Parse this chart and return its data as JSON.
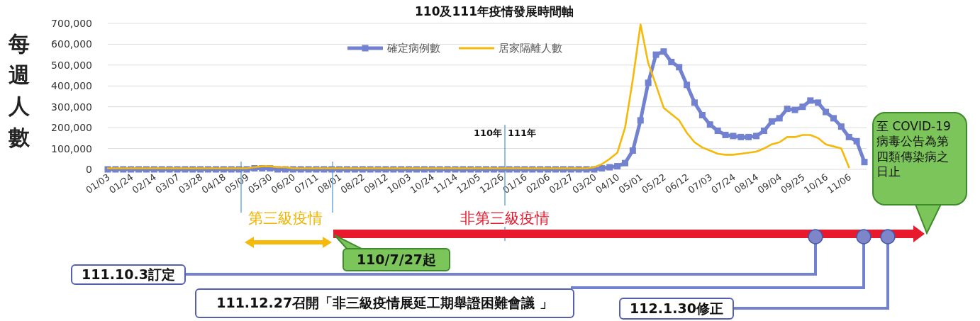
{
  "chart_data": {
    "type": "line",
    "title": "110及111年疫情發展時間軸",
    "ylabel": "每週人數",
    "categories": [
      "01/03",
      null,
      null,
      "01/24",
      null,
      null,
      "02/14",
      null,
      null,
      "03/07",
      null,
      null,
      "03/28",
      null,
      null,
      "04/18",
      null,
      null,
      "05/09",
      null,
      null,
      "05/30",
      null,
      null,
      "06/20",
      null,
      null,
      "07/11",
      null,
      null,
      "08/01",
      null,
      null,
      "08/22",
      null,
      null,
      "09/12",
      null,
      null,
      "10/03",
      null,
      null,
      "10/24",
      null,
      null,
      "11/14",
      null,
      null,
      "12/05",
      null,
      null,
      "12/26",
      null,
      null,
      "01/16",
      null,
      null,
      "02/06",
      null,
      null,
      "02/27",
      null,
      null,
      "03/20",
      null,
      null,
      "04/10",
      null,
      null,
      "05/01",
      null,
      null,
      "05/22",
      null,
      null,
      "06/12",
      null,
      null,
      "07/03",
      null,
      null,
      "07/24",
      null,
      null,
      "08/14",
      null,
      null,
      "09/04",
      null,
      null,
      "09/25",
      null,
      null,
      "10/16",
      null,
      null,
      "11/06",
      null,
      null
    ],
    "series": [
      {
        "name": "確定病例數",
        "color": "#7282d0",
        "marker": "square",
        "values": [
          0,
          0,
          0,
          0,
          0,
          0,
          0,
          0,
          0,
          0,
          0,
          0,
          0,
          0,
          0,
          0,
          0,
          0,
          0,
          5000,
          5000,
          5000,
          0,
          0,
          0,
          0,
          0,
          0,
          0,
          0,
          0,
          0,
          0,
          0,
          0,
          0,
          0,
          0,
          0,
          0,
          0,
          0,
          0,
          0,
          0,
          0,
          0,
          0,
          0,
          0,
          0,
          0,
          0,
          0,
          0,
          0,
          0,
          0,
          0,
          0,
          0,
          0,
          0,
          0,
          5000,
          10000,
          15000,
          30000,
          90000,
          235000,
          415000,
          550000,
          565000,
          515000,
          490000,
          405000,
          320000,
          260000,
          215000,
          185000,
          165000,
          160000,
          155000,
          155000,
          160000,
          185000,
          230000,
          245000,
          290000,
          285000,
          300000,
          330000,
          320000,
          275000,
          245000,
          205000,
          155000,
          135000,
          35000
        ]
      },
      {
        "name": "居家隔離人數",
        "color": "#f5b90a",
        "values": [
          5000,
          5000,
          5000,
          5000,
          5000,
          5000,
          5000,
          5000,
          5000,
          5000,
          5000,
          5000,
          5000,
          5000,
          5000,
          5000,
          5000,
          5000,
          5000,
          10000,
          15000,
          15000,
          10000,
          10000,
          5000,
          5000,
          5000,
          5000,
          5000,
          5000,
          5000,
          5000,
          5000,
          5000,
          5000,
          5000,
          5000,
          5000,
          5000,
          5000,
          5000,
          5000,
          5000,
          5000,
          5000,
          5000,
          5000,
          5000,
          5000,
          5000,
          5000,
          5000,
          5000,
          5000,
          5000,
          5000,
          5000,
          5000,
          5000,
          5000,
          5000,
          5000,
          5000,
          10000,
          25000,
          50000,
          80000,
          200000,
          430000,
          695000,
          510000,
          405000,
          295000,
          265000,
          235000,
          175000,
          130000,
          105000,
          90000,
          75000,
          70000,
          70000,
          75000,
          80000,
          85000,
          100000,
          120000,
          130000,
          155000,
          155000,
          165000,
          165000,
          150000,
          120000,
          110000,
          100000,
          10000,
          null,
          null
        ]
      }
    ],
    "ylim": [
      0,
      700000
    ],
    "yticks": [
      0,
      {
        "value": 100000,
        "label": "100,000"
      },
      {
        "value": 200000,
        "label": "200,000"
      },
      {
        "value": 300000,
        "label": "300,000"
      },
      {
        "value": 400000,
        "label": "400,000"
      },
      {
        "value": 500000,
        "label": "500,000"
      },
      {
        "value": 600000,
        "label": "600,000"
      },
      {
        "value": 700000,
        "label": "700,000"
      }
    ],
    "grid": "y",
    "legend": "top",
    "annotations": [
      "第三級疫情",
      "非第三級疫情",
      "110/7/27起",
      "111.10.3訂定",
      "111.12.27召開「非三級疫情展延工期舉證困難會議 」",
      "112.1.30修正",
      "至 COVID-19病毒公告為第四類傳染病之日止",
      "110年",
      "111年"
    ]
  }
}
